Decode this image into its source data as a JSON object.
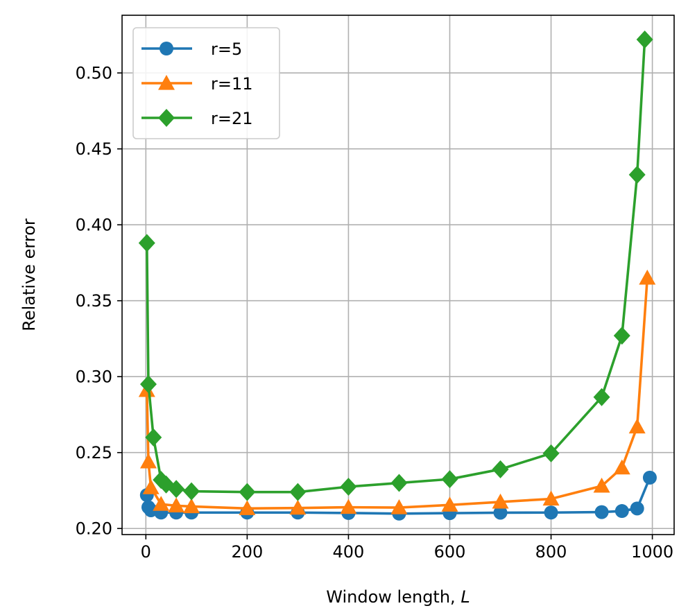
{
  "chart_data": {
    "type": "line",
    "title": "",
    "xlabel": "Window length, L",
    "xlabel_prefix": "Window length, ",
    "xlabel_var": "L",
    "ylabel": "Relative error",
    "xlim": [
      -47,
      1043
    ],
    "ylim": [
      0.196,
      0.538
    ],
    "x_ticks": [
      0,
      200,
      400,
      600,
      800,
      1000
    ],
    "x_tick_labels": [
      "0",
      "200",
      "400",
      "600",
      "800",
      "1000"
    ],
    "y_ticks": [
      0.2,
      0.25,
      0.3,
      0.35,
      0.4,
      0.45,
      0.5
    ],
    "y_tick_labels": [
      "0.20",
      "0.25",
      "0.30",
      "0.35",
      "0.40",
      "0.45",
      "0.50"
    ],
    "grid": true,
    "legend_position": "top-left",
    "series": [
      {
        "name": "r=5",
        "color": "#1f77b4",
        "marker": "circle",
        "x": [
          2,
          5,
          10,
          30,
          60,
          90,
          200,
          300,
          400,
          500,
          600,
          700,
          800,
          900,
          940,
          970,
          995
        ],
        "y": [
          0.222,
          0.214,
          0.212,
          0.2105,
          0.2105,
          0.2105,
          0.2105,
          0.2105,
          0.2102,
          0.2098,
          0.2101,
          0.2104,
          0.2105,
          0.2108,
          0.2115,
          0.2132,
          0.2335
        ]
      },
      {
        "name": "r=11",
        "color": "#ff7f0e",
        "marker": "triangle",
        "x": [
          2,
          5,
          10,
          30,
          60,
          90,
          200,
          300,
          400,
          500,
          600,
          700,
          800,
          900,
          940,
          970,
          990
        ],
        "y": [
          0.291,
          0.244,
          0.227,
          0.216,
          0.215,
          0.2145,
          0.2132,
          0.2135,
          0.214,
          0.2138,
          0.2155,
          0.2175,
          0.2195,
          0.228,
          0.24,
          0.267,
          0.365
        ]
      },
      {
        "name": "r=21",
        "color": "#2ca02c",
        "marker": "diamond",
        "x": [
          2,
          5,
          15,
          30,
          40,
          60,
          90,
          200,
          300,
          400,
          500,
          600,
          700,
          800,
          900,
          940,
          970,
          985
        ],
        "y": [
          0.388,
          0.295,
          0.26,
          0.232,
          0.229,
          0.226,
          0.2245,
          0.224,
          0.224,
          0.2275,
          0.23,
          0.2325,
          0.239,
          0.2495,
          0.2865,
          0.327,
          0.433,
          0.522
        ]
      }
    ]
  }
}
